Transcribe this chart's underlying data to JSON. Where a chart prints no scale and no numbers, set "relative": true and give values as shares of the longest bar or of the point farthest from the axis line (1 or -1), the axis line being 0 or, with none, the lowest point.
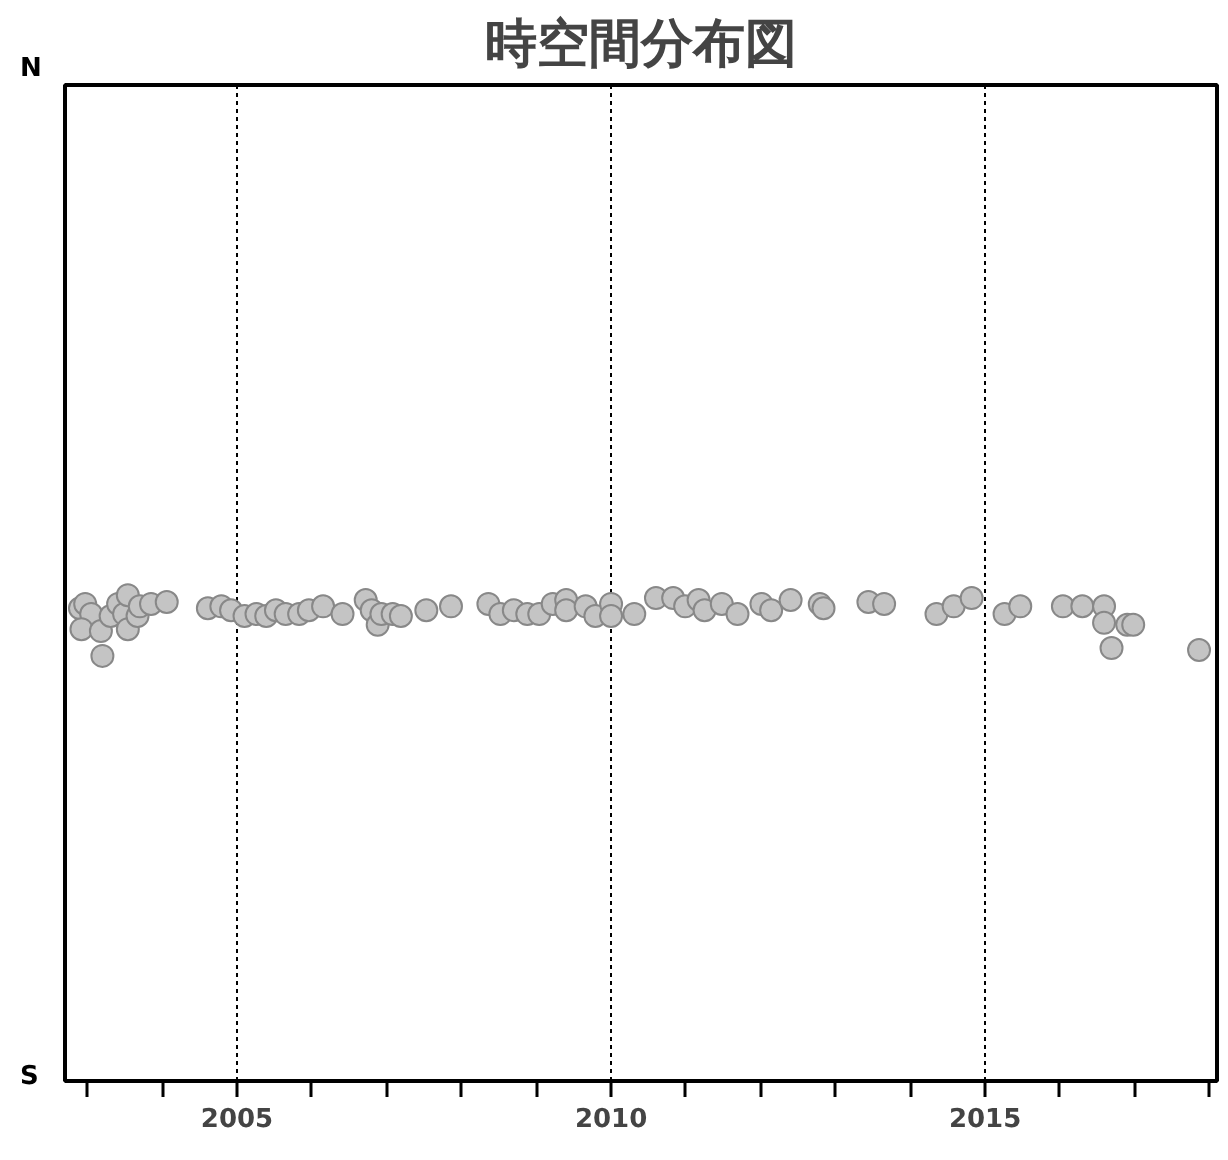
{
  "chart_data": {
    "type": "scatter",
    "title": "時空間分布図",
    "relative": true,
    "annotations": [
      "N",
      "S"
    ],
    "xlim": [
      2002.7,
      2018.1
    ],
    "xticks": [
      {
        "value": 2003,
        "label": null
      },
      {
        "value": 2004,
        "label": null
      },
      2005,
      {
        "value": 2006,
        "label": null
      },
      {
        "value": 2007,
        "label": null
      },
      {
        "value": 2008,
        "label": null
      },
      {
        "value": 2009,
        "label": null
      },
      2010,
      {
        "value": 2011,
        "label": null
      },
      {
        "value": 2012,
        "label": null
      },
      {
        "value": 2013,
        "label": null
      },
      {
        "value": 2014,
        "label": null
      },
      2015,
      {
        "value": 2016,
        "label": null
      },
      {
        "value": 2017,
        "label": null
      },
      {
        "value": 2018,
        "label": null
      }
    ],
    "grid": "x",
    "marker": "circle",
    "series": [
      {
        "color": "#c4c4c4",
        "x": [
          2002.9,
          2002.97,
          2003.05,
          2002.92,
          2003.18,
          2003.2,
          2003.31,
          2003.41,
          2003.49,
          2003.54,
          2003.54,
          2003.67,
          2003.7,
          2003.85,
          2004.06,
          2004.61,
          2004.79,
          2004.92,
          2005.1,
          2005.26,
          2005.39,
          2005.52,
          2005.65,
          2005.83,
          2005.96,
          2006.15,
          2006.41,
          2006.72,
          2006.8,
          2006.88,
          2006.93,
          2007.08,
          2007.19,
          2007.53,
          2007.86,
          2008.36,
          2008.52,
          2008.7,
          2008.88,
          2009.04,
          2009.22,
          2009.4,
          2009.4,
          2009.66,
          2009.79,
          2010.0,
          2010.0,
          2010.31,
          2010.6,
          2010.83,
          2010.99,
          2011.17,
          2011.25,
          2011.48,
          2011.69,
          2012.01,
          2012.14,
          2012.4,
          2012.79,
          2012.84,
          2013.44,
          2013.65,
          2014.35,
          2014.58,
          2014.82,
          2015.26,
          2015.47,
          2016.04,
          2016.3,
          2016.59,
          2016.59,
          2016.69,
          2016.9,
          2016.98,
          2017.86
        ],
        "values": [
          0.973,
          0.982,
          0.961,
          0.93,
          0.926,
          0.875,
          0.957,
          0.982,
          0.961,
          1,
          0.93,
          0.957,
          0.977,
          0.982,
          0.986,
          0.973,
          0.977,
          0.969,
          0.957,
          0.961,
          0.957,
          0.969,
          0.961,
          0.961,
          0.969,
          0.977,
          0.961,
          0.99,
          0.969,
          0.939,
          0.961,
          0.961,
          0.957,
          0.969,
          0.977,
          0.982,
          0.961,
          0.969,
          0.961,
          0.961,
          0.982,
          0.99,
          0.969,
          0.977,
          0.957,
          0.982,
          0.957,
          0.961,
          0.994,
          0.994,
          0.977,
          0.99,
          0.969,
          0.982,
          0.961,
          0.982,
          0.969,
          0.99,
          0.982,
          0.973,
          0.986,
          0.982,
          0.961,
          0.977,
          0.994,
          0.961,
          0.977,
          0.977,
          0.977,
          0.977,
          0.943,
          0.891,
          0.939,
          0.939,
          0.887
        ]
      }
    ]
  }
}
